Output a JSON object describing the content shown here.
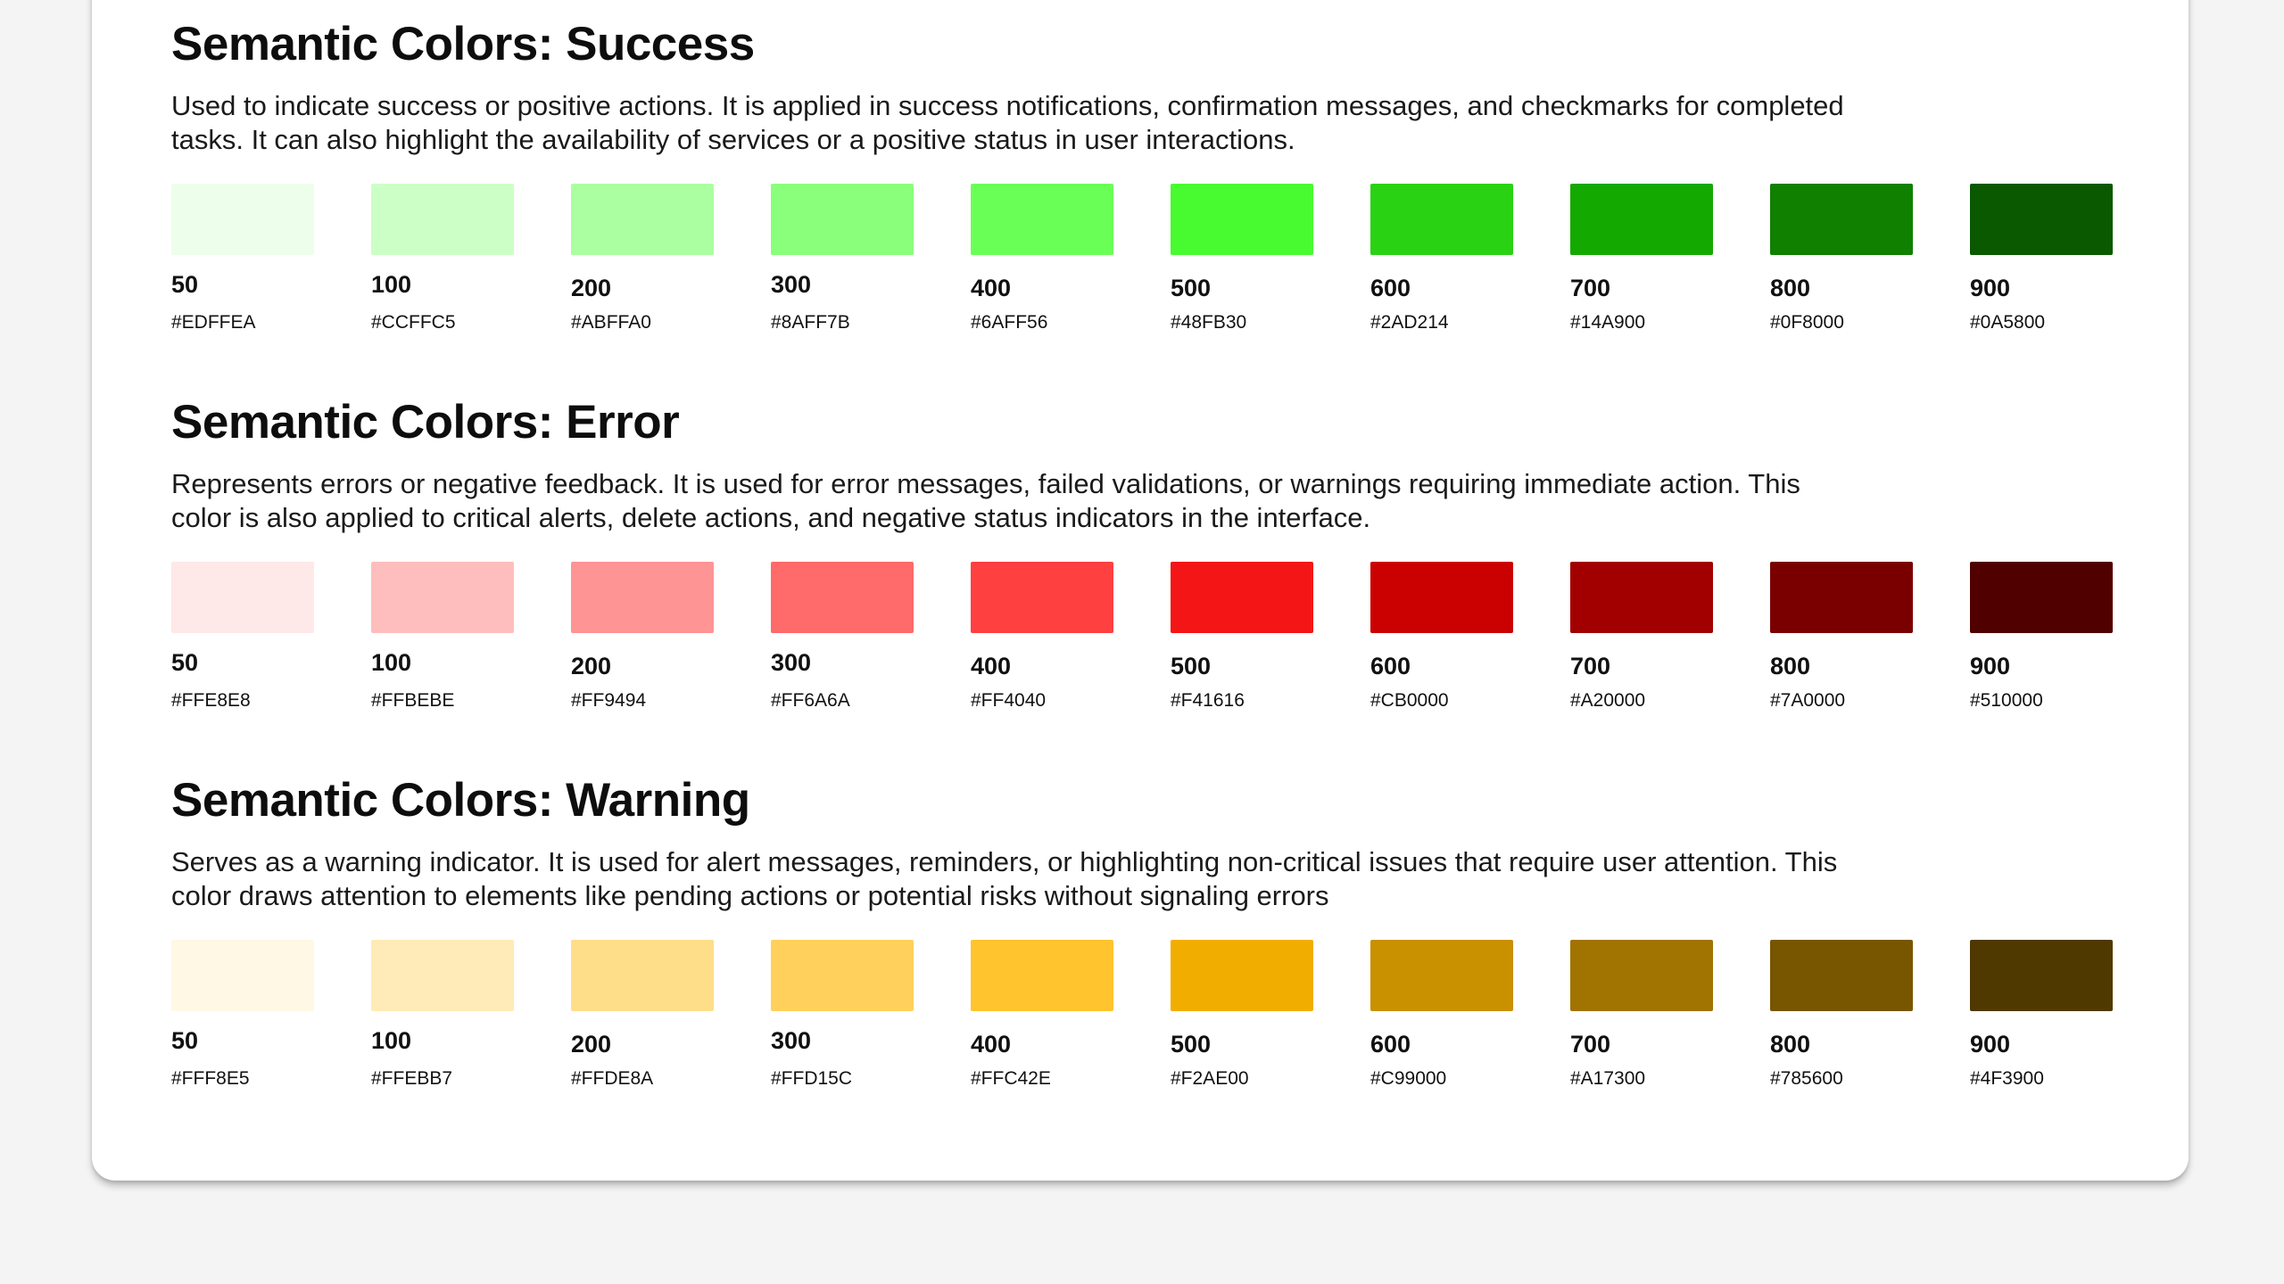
{
  "sections": [
    {
      "title": "Semantic Colors: Success",
      "description": "Used to indicate success or positive actions. It is applied in success notifications, confirmation messages, and checkmarks for completed tasks. It can also highlight the availability of services or a positive status in user interactions.",
      "swatches": [
        {
          "shade": "50",
          "hex": "#EDFFEA",
          "color": "#EDFFEA"
        },
        {
          "shade": "100",
          "hex": "#CCFFC5",
          "color": "#CCFFC5"
        },
        {
          "shade": "200",
          "hex": "#ABFFA0",
          "color": "#ABFFA0"
        },
        {
          "shade": "300",
          "hex": "#8AFF7B",
          "color": "#8AFF7B"
        },
        {
          "shade": "400",
          "hex": "#6AFF56",
          "color": "#6AFF56"
        },
        {
          "shade": "500",
          "hex": "#48FB30",
          "color": "#48FB30"
        },
        {
          "shade": "600",
          "hex": "#2AD214",
          "color": "#2AD214"
        },
        {
          "shade": "700",
          "hex": "#14A900",
          "color": "#14A900"
        },
        {
          "shade": "800",
          "hex": "#0F8000",
          "color": "#0F8000"
        },
        {
          "shade": "900",
          "hex": "#0A5800",
          "color": "#0A5800"
        }
      ]
    },
    {
      "title": "Semantic Colors: Error",
      "description": "Represents errors or negative feedback. It is used for error messages, failed validations, or warnings requiring immediate action. This color is also applied to critical alerts, delete actions, and negative status indicators in the interface.",
      "swatches": [
        {
          "shade": "50",
          "hex": "#FFE8E8",
          "color": "#FFE8E8"
        },
        {
          "shade": "100",
          "hex": "#FFBEBE",
          "color": "#FFBEBE"
        },
        {
          "shade": "200",
          "hex": "#FF9494",
          "color": "#FF9494"
        },
        {
          "shade": "300",
          "hex": "#FF6A6A",
          "color": "#FF6A6A"
        },
        {
          "shade": "400",
          "hex": "#FF4040",
          "color": "#FF4040"
        },
        {
          "shade": "500",
          "hex": "#F41616",
          "color": "#F41616"
        },
        {
          "shade": "600",
          "hex": "#CB0000",
          "color": "#CB0000"
        },
        {
          "shade": "700",
          "hex": "#A20000",
          "color": "#A20000"
        },
        {
          "shade": "800",
          "hex": "#7A0000",
          "color": "#7A0000"
        },
        {
          "shade": "900",
          "hex": "#510000",
          "color": "#510000"
        }
      ]
    },
    {
      "title": "Semantic Colors: Warning",
      "description": "Serves as a warning indicator. It is used for alert messages, reminders, or highlighting non-critical issues that require user attention. This color draws attention to elements like pending actions or potential risks without signaling errors",
      "swatches": [
        {
          "shade": "50",
          "hex": "#FFF8E5",
          "color": "#FFF8E5"
        },
        {
          "shade": "100",
          "hex": "#FFEBB7",
          "color": "#FFEBB7"
        },
        {
          "shade": "200",
          "hex": "#FFDE8A",
          "color": "#FFDE8A"
        },
        {
          "shade": "300",
          "hex": "#FFD15C",
          "color": "#FFD15C"
        },
        {
          "shade": "400",
          "hex": "#FFC42E",
          "color": "#FFC42E"
        },
        {
          "shade": "500",
          "hex": "#F2AE00",
          "color": "#F2AE00"
        },
        {
          "shade": "600",
          "hex": "#C99000",
          "color": "#C99000"
        },
        {
          "shade": "700",
          "hex": "#A17300",
          "color": "#A17300"
        },
        {
          "shade": "800",
          "hex": "#785600",
          "color": "#785600"
        },
        {
          "shade": "900",
          "hex": "#4F3900",
          "color": "#4F3900"
        }
      ]
    }
  ]
}
